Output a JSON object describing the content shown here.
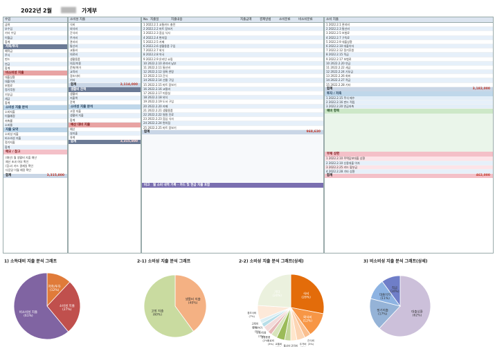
{
  "header": {
    "year": "2022년",
    "month": "2월",
    "title": "가계부"
  },
  "col1": {
    "header": "수입",
    "rows": [
      "급여",
      "부수입",
      "기타 수입",
      "이월금",
      "합계"
    ],
    "section2": "저축/투자",
    "rows2": [
      "예적금",
      "주식",
      "펀드",
      "연금",
      "합계"
    ],
    "section3": "비소비성 지출",
    "rows3": [
      "대출상환",
      "대출이자",
      "보험료",
      "정기후원",
      "기부금",
      "세금",
      "합계"
    ],
    "section4": "소비성 지출 분석",
    "rows4": [
      "소비지출",
      "이월예정",
      "저축률",
      "소비율"
    ],
    "section5": "지출 요약",
    "rows5": [
      "소비성 지출",
      "비소비성 지출",
      "정기지출",
      "합계"
    ],
    "note_title": "메모 / 참고",
    "note_lines": [
      "(예산) 월 생활비 지출 예산",
      "예산 초과 여부 확인",
      "(참고) 카드 결제일 확인",
      "다음달 이월 예정 확인"
    ],
    "total_label": "합계",
    "total_value": "3,315,800"
  },
  "col2": {
    "header": "소비성 지출",
    "rows": [
      "식비",
      "외식비",
      "간식비",
      "주거비",
      "관리비",
      "통신비",
      "교통비",
      "의료비",
      "생활용품",
      "의류/미용",
      "문화/여가",
      "교육비",
      "경조사비",
      "기타"
    ],
    "total_label": "합계",
    "total_value": "2,114,000",
    "section2": "생활비 잔액",
    "rows2": [
      "생활비",
      "지출액",
      "잔액"
    ],
    "section3": "소비성 지출 분석",
    "rows3": [
      "고정 지출",
      "생활비 지출",
      "합계"
    ],
    "section4": "예산 대비 지출",
    "rows4": [
      "예산",
      "실지출",
      "차액"
    ],
    "grand_label": "합계",
    "grand_value": "3,315,800"
  },
  "col3": {
    "header_no": "No.",
    "header_date": "지출일",
    "header_detail": "지출내용",
    "header_amount": "지출금액",
    "header_method": "결제방법",
    "header_cat": "소비분류",
    "header_sub": "비소비분류",
    "rows": [
      "1 2022.2.1 교통카드 충전",
      "2 2022.2.2 마트 장보기",
      "3 2022.2.3 점심 식사",
      "4 2022.2.4 편의점",
      "5 2022.2.5 카페",
      "6 2022.2.6 생활용품 구입",
      "7 2022.2.7 외식",
      "8 2022.2.8 약국",
      "9 2022.2.9 온라인 쇼핑",
      "10 2022.2.10 관리비 납부",
      "11 2022.2.11 통신비",
      "12 2022.2.12 영화 관람",
      "13 2022.2.13 간식",
      "14 2022.2.14 선물 구입",
      "15 2022.2.15 마트 장보기",
      "16 2022.2.16 교통비",
      "17 2022.2.17 미용실",
      "18 2022.2.18 외식",
      "19 2022.2.19 도서 구입",
      "20 2022.2.20 카페",
      "21 2022.2.21 생활용품",
      "22 2022.2.22 병원 진료",
      "23 2022.2.23 점심 식사",
      "24 2022.2.24 편의점",
      "25 2022.2.25 마트 장보기"
    ],
    "total_label": "합계",
    "total_value": "968,630",
    "footer_label": "비고",
    "footer_text": "월 소비 내역 기록 - 카드 및 현금 지출 포함"
  },
  "col4": {
    "header": "소비 지출",
    "rows": [
      "1 2022.2.1 관리비",
      "2 2022.2.3 통신비",
      "3 2022.2.5 보험료",
      "4 2022.2.7 구독료",
      "5 2022.2.9 대출상환",
      "6 2022.2.10 대출이자",
      "7 2022.2.12 정기후원",
      "8 2022.2.15 적금",
      "9 2022.2.17 보험료",
      "10 2022.2.20 연금",
      "11 2022.2.22 세금",
      "12 2022.2.24 기부금",
      "13 2022.2.26 회비",
      "14 2022.2.27 적금",
      "15 2022.2.28 기타"
    ],
    "total_label": "합계",
    "total_value": "3,182,000",
    "section2": "투자 / 저축",
    "rows2": [
      "1 2022.2.15 주식 매수",
      "2 2022.2.16 펀드 적립",
      "3 2022.2.20 연금저축"
    ],
    "section3": "예비 항목",
    "section4": "부채 상환",
    "rows4": [
      "1 2022.2.10 주택담보대출 상환",
      "2 2022.2.10 신용대출 이자",
      "3 2022.2.25 카드 할부금",
      "4 2022.2.28 기타 상환"
    ],
    "grand_label": "합계",
    "grand_value": "462,000"
  },
  "charts": {
    "c1_title": "1) 소득대비 지출 분석 그래프",
    "c2_title": "2-1) 소비성 지출 분석 그래프",
    "c3_title": "2-2) 소비성 지출 분석 그래프(상세)",
    "c4_title": "3) 비소비성 지출 분석 그래프(상세)"
  },
  "chart_data": [
    {
      "type": "pie",
      "title": "1) 소득대비 지출 분석 그래프",
      "labels": [
        "저축/투자",
        "소비성 지출",
        "비소비성 지출"
      ],
      "values": [
        12,
        27,
        61
      ],
      "colors": [
        "#e07b39",
        "#c0504d",
        "#8064a2"
      ]
    },
    {
      "type": "pie",
      "title": "2-1) 소비성 지출 분석 그래프",
      "labels": [
        "생활비 지출",
        "고정 지출"
      ],
      "values": [
        40,
        60
      ],
      "colors": [
        "#f4b183",
        "#c9dba0"
      ]
    },
    {
      "type": "pie",
      "title": "2-2) 소비성 지출 분석 그래프(상세)",
      "labels": [
        "식비",
        "외식비",
        "간식비",
        "주거비",
        "관리비",
        "통신비",
        "교통비",
        "의료비",
        "생활용품",
        "의류/미용",
        "문화/여가",
        "교육비",
        "경조사비",
        "기타"
      ],
      "values": [
        28,
        12,
        3,
        4,
        3,
        3,
        4,
        3,
        2,
        3,
        2,
        2,
        7,
        24
      ],
      "colors": [
        "#e36c0a",
        "#f79646",
        "#fabf8f",
        "#fcd5b4",
        "#ffe6cc",
        "#c4d79b",
        "#9bbb59",
        "#d8e4bc",
        "#e6b8b7",
        "#f2dcdb",
        "#b7dee8",
        "#dbeef3",
        "#fde9d9",
        "#ebf1de"
      ]
    },
    {
      "type": "pie",
      "title": "3) 비소비성 지출 분석 그래프(상세)",
      "labels": [
        "대출상환",
        "정기지출",
        "대출이자",
        "적금"
      ],
      "values": [
        62,
        17,
        11,
        10
      ],
      "colors": [
        "#ccc0da",
        "#95b3d7",
        "#8db3e2",
        "#6f7ec8"
      ]
    }
  ]
}
